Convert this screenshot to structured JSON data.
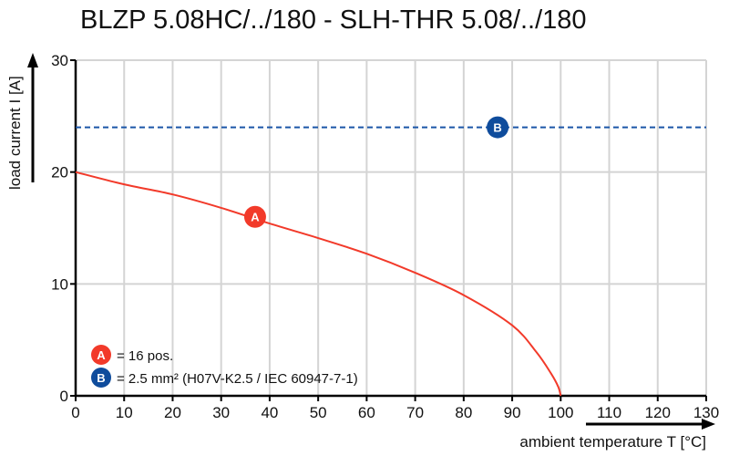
{
  "chart_data": {
    "type": "line",
    "title": "BLZP 5.08HC/../180 - SLH-THR 5.08/../180",
    "xlabel": "ambient temperature T [°C]",
    "ylabel": "load current I [A]",
    "xlim": [
      0,
      130
    ],
    "ylim": [
      0,
      30
    ],
    "xticks": [
      0,
      10,
      20,
      30,
      40,
      50,
      60,
      70,
      80,
      90,
      100,
      110,
      120,
      130
    ],
    "yticks": [
      0,
      10,
      20,
      30
    ],
    "grid": true,
    "series": [
      {
        "name": "A",
        "color": "#f23a2a",
        "style": "solid",
        "x": [
          0,
          10,
          20,
          30,
          40,
          50,
          60,
          70,
          80,
          90,
          95,
          98,
          99.5,
          100
        ],
        "y": [
          20,
          18.9,
          18.0,
          16.8,
          15.4,
          14.1,
          12.7,
          11.0,
          9.0,
          6.3,
          3.9,
          2.0,
          0.8,
          0
        ],
        "marker": {
          "label": "A",
          "x": 37,
          "y": 16
        }
      },
      {
        "name": "B",
        "color": "#1b56a8",
        "style": "dashed",
        "x": [
          0,
          130
        ],
        "y": [
          24,
          24
        ],
        "marker": {
          "label": "B",
          "x": 87,
          "y": 24
        }
      }
    ],
    "legend": [
      {
        "label": "A",
        "text": "= 16 pos.",
        "color": "#f23a2a"
      },
      {
        "label": "B",
        "text": "= 2.5 mm² (H07V-K2.5 / IEC 60947-7-1)",
        "color": "#0f4c9c"
      }
    ],
    "legend_placement": "bottom-left"
  }
}
